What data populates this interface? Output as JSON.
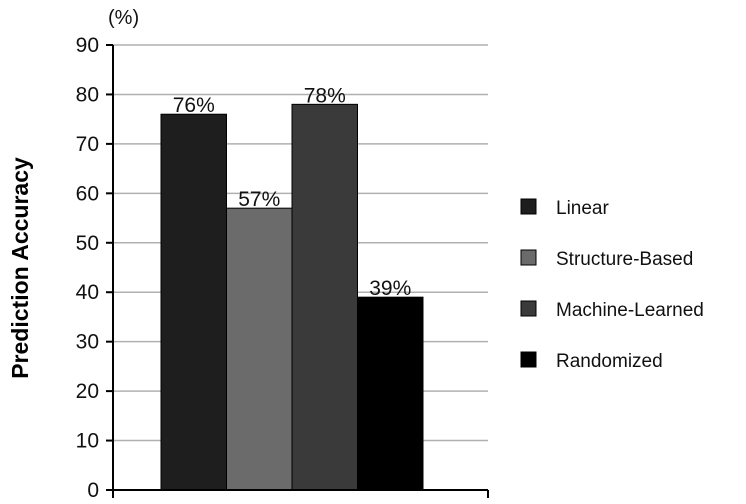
{
  "chart_data": {
    "type": "bar",
    "title": "",
    "xlabel": "",
    "ylabel": "Prediction Accuracy",
    "y_unit": "(%)",
    "ylim": [
      0,
      90
    ],
    "yticks": [
      0,
      10,
      20,
      30,
      40,
      50,
      60,
      70,
      80,
      90
    ],
    "grid": true,
    "legend_position": "right",
    "series": [
      {
        "name": "Linear",
        "value": 76,
        "label": "76%",
        "color": "#1e1e1e"
      },
      {
        "name": "Structure-Based",
        "value": 57,
        "label": "57%",
        "color": "#6b6b6b"
      },
      {
        "name": "Machine-Learned",
        "value": 78,
        "label": "78%",
        "color": "#3a3a3a"
      },
      {
        "name": "Randomized",
        "value": 39,
        "label": "39%",
        "color": "#000000"
      }
    ]
  }
}
